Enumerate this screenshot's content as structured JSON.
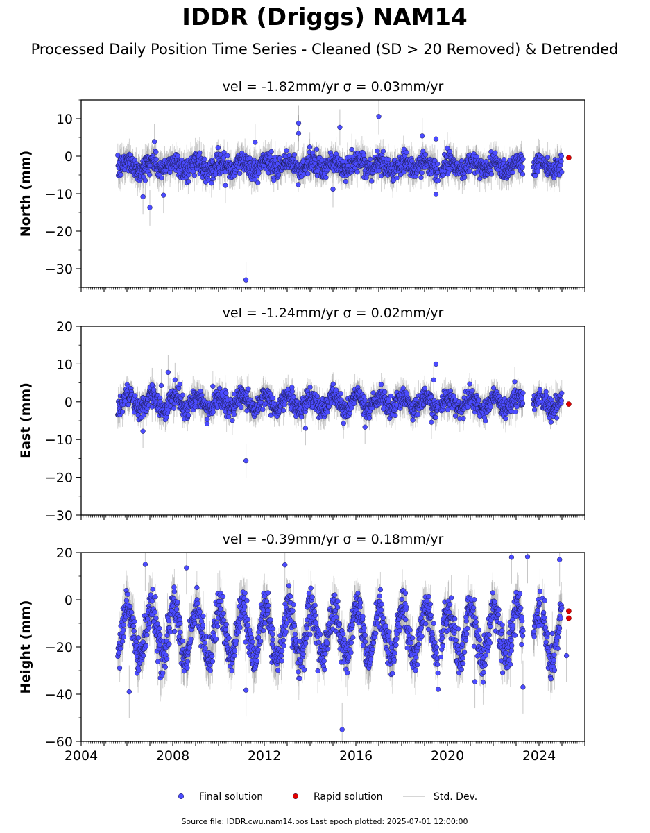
{
  "title": "IDDR (Driggs) NAM14",
  "subtitle": "Processed Daily Position Time Series - Cleaned (SD > 20 Removed) & Detrended",
  "source_text": "Source file: IDDR.cwu.nam14.pos  Last epoch plotted: 2025-07-01 12:00:00",
  "legend": [
    {
      "label": "Final solution",
      "kind": "marker",
      "color": "#4b4bff"
    },
    {
      "label": "Rapid solution",
      "kind": "marker",
      "color": "#e00000"
    },
    {
      "label": "Std. Dev.",
      "kind": "line",
      "color": "#c8c8c8"
    }
  ],
  "colors": {
    "final": "#4b4bff",
    "rapid": "#e00000",
    "stddev": "#808080",
    "marker_edge": "#1a1a4a"
  },
  "chart_data": [
    {
      "type": "scatter",
      "title": "vel = -1.82mm/yr   σ = 0.03mm/yr",
      "ylabel": "North (mm)",
      "xlim": [
        2004,
        2026
      ],
      "ylim": [
        -35,
        15
      ],
      "yticks": [
        10,
        0,
        -10,
        -20,
        -30
      ],
      "xticks": [
        2004,
        2008,
        2012,
        2016,
        2020,
        2024
      ],
      "show_xticklabels": false,
      "grid": false,
      "pattern": {
        "start": 2005.6,
        "end": 2025.0,
        "center": -2.5,
        "seasonal_amp": 1.2,
        "noise": 1.4,
        "err": 3.0,
        "gaps": [
          [
            2023.3,
            2023.75
          ],
          [
            2024.05,
            2024.12
          ],
          [
            2019.6,
            2019.7
          ]
        ]
      },
      "outliers": [
        [
          2006.7,
          -10.8
        ],
        [
          2007.0,
          -13.7
        ],
        [
          2007.2,
          3.9
        ],
        [
          2007.6,
          -10.4
        ],
        [
          2011.2,
          -33.0
        ],
        [
          2011.6,
          3.7
        ],
        [
          2013.5,
          8.8
        ],
        [
          2013.5,
          6.1
        ],
        [
          2015.3,
          7.7
        ],
        [
          2017.0,
          10.6
        ],
        [
          2018.9,
          5.4
        ],
        [
          2019.5,
          4.6
        ],
        [
          2019.5,
          -10.2
        ],
        [
          2015.0,
          -8.8
        ],
        [
          2006.8,
          -6.5
        ],
        [
          2010.3,
          -7.8
        ]
      ],
      "rapid": [
        [
          2025.3,
          -0.4
        ]
      ]
    },
    {
      "type": "scatter",
      "title": "vel = -1.24mm/yr   σ = 0.02mm/yr",
      "ylabel": "East (mm)",
      "xlim": [
        2004,
        2026
      ],
      "ylim": [
        -30,
        20
      ],
      "yticks": [
        20,
        10,
        0,
        -10,
        -20,
        -30
      ],
      "xticks": [
        2004,
        2008,
        2012,
        2016,
        2020,
        2024
      ],
      "show_xticklabels": false,
      "grid": false,
      "pattern": {
        "start": 2005.6,
        "end": 2025.0,
        "center": -0.3,
        "seasonal_amp": 1.8,
        "noise": 1.3,
        "err": 2.8,
        "gaps": [
          [
            2023.3,
            2023.75
          ],
          [
            2024.05,
            2024.12
          ],
          [
            2019.6,
            2019.7
          ]
        ]
      },
      "outliers": [
        [
          2006.7,
          -7.8
        ],
        [
          2007.1,
          4.5
        ],
        [
          2007.5,
          4.3
        ],
        [
          2007.8,
          7.8
        ],
        [
          2008.1,
          5.8
        ],
        [
          2011.2,
          -15.6
        ],
        [
          2013.8,
          -7.0
        ],
        [
          2016.4,
          -6.7
        ],
        [
          2019.5,
          10.0
        ],
        [
          2019.4,
          5.8
        ],
        [
          2019.3,
          -5.4
        ],
        [
          2009.5,
          -5.8
        ]
      ],
      "rapid": [
        [
          2025.3,
          -0.6
        ]
      ]
    },
    {
      "type": "scatter",
      "title": "vel = -0.39mm/yr   σ = 0.18mm/yr",
      "ylabel": "Height (mm)",
      "xlim": [
        2004,
        2026
      ],
      "ylim": [
        -60,
        20
      ],
      "yticks": [
        20,
        0,
        -20,
        -40,
        -60
      ],
      "xticks": [
        2004,
        2008,
        2012,
        2016,
        2020,
        2024
      ],
      "show_xticklabels": true,
      "grid": false,
      "pattern": {
        "start": 2005.6,
        "end": 2025.0,
        "center": -14.0,
        "seasonal_amp": 11.0,
        "noise": 4.0,
        "err": 7.0,
        "gaps": [
          [
            2023.3,
            2023.75
          ],
          [
            2024.05,
            2024.12
          ],
          [
            2019.6,
            2019.7
          ]
        ]
      },
      "outliers": [
        [
          2006.1,
          -39.0
        ],
        [
          2006.8,
          15.0
        ],
        [
          2008.6,
          13.5
        ],
        [
          2011.2,
          -38.3
        ],
        [
          2012.9,
          14.8
        ],
        [
          2015.4,
          -55.0
        ],
        [
          2022.8,
          18.0
        ],
        [
          2023.5,
          18.2
        ],
        [
          2024.9,
          17.0
        ],
        [
          2025.2,
          -23.7
        ],
        [
          2021.2,
          -34.7
        ],
        [
          2023.3,
          -37.0
        ]
      ],
      "rapid": [
        [
          2025.3,
          -4.8
        ],
        [
          2025.3,
          -7.8
        ]
      ]
    }
  ]
}
